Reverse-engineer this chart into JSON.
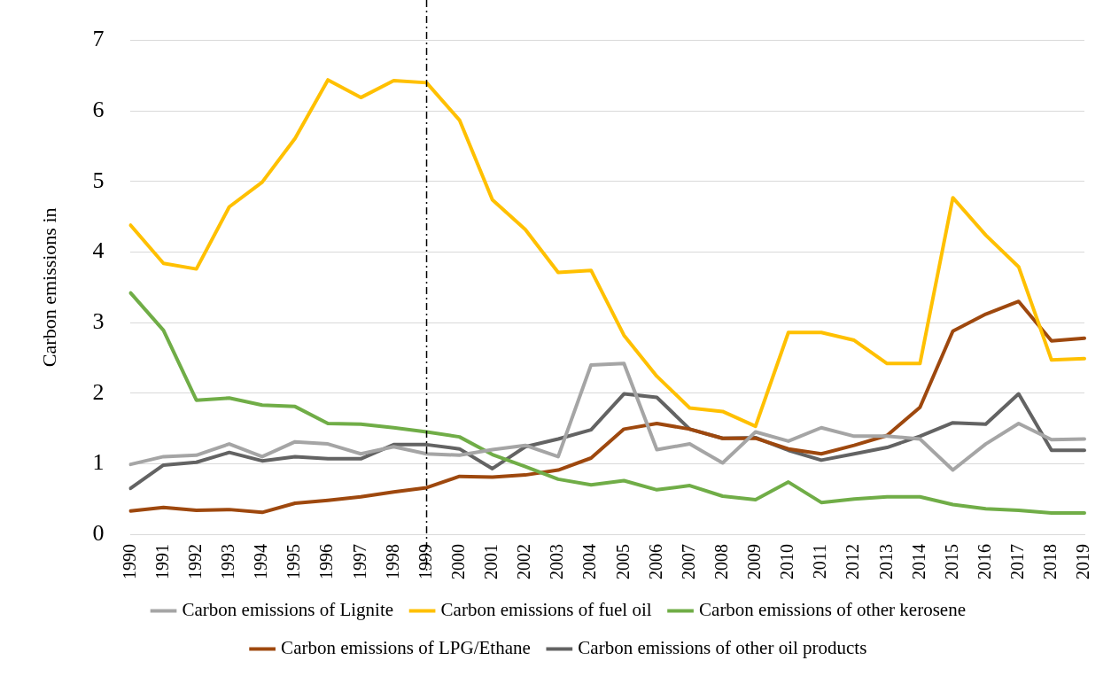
{
  "chart_data": {
    "type": "line",
    "ylabel": "Carbon emissions in",
    "categories": [
      "1990",
      "1991",
      "1992",
      "1993",
      "1994",
      "1995",
      "1996",
      "1997",
      "1998",
      "1999",
      "2000",
      "2001",
      "2002",
      "2003",
      "2004",
      "2005",
      "2006",
      "2007",
      "2008",
      "2009",
      "2010",
      "2011",
      "2012",
      "2013",
      "2014",
      "2015",
      "2016",
      "2017",
      "2018",
      "2019"
    ],
    "series": [
      {
        "name": "Carbon emissions of Lignite",
        "color": "#a5a5a5",
        "values": [
          0.99,
          1.1,
          1.12,
          1.28,
          1.1,
          1.31,
          1.28,
          1.14,
          1.24,
          1.14,
          1.12,
          1.2,
          1.26,
          1.1,
          2.4,
          2.42,
          1.2,
          1.28,
          1.01,
          1.45,
          1.32,
          1.51,
          1.39,
          1.39,
          1.35,
          0.91,
          1.28,
          1.57,
          1.34,
          1.35
        ]
      },
      {
        "name": "Carbon emissions of fuel oil",
        "color": "#ffc000",
        "values": [
          4.38,
          3.84,
          3.76,
          4.64,
          4.99,
          5.61,
          6.44,
          6.19,
          6.43,
          6.4,
          5.87,
          4.74,
          4.32,
          3.71,
          3.74,
          2.82,
          2.24,
          1.79,
          1.74,
          1.53,
          2.86,
          2.86,
          2.75,
          2.42,
          2.42,
          4.77,
          4.24,
          3.79,
          2.47,
          2.49
        ]
      },
      {
        "name": "Carbon emissions of other kerosene",
        "color": "#70ad47",
        "values": [
          3.42,
          2.89,
          1.9,
          1.93,
          1.83,
          1.81,
          1.57,
          1.56,
          1.51,
          1.45,
          1.38,
          1.13,
          0.96,
          0.78,
          0.7,
          0.76,
          0.63,
          0.69,
          0.54,
          0.49,
          0.74,
          0.45,
          0.5,
          0.53,
          0.53,
          0.42,
          0.36,
          0.34,
          0.3,
          0.3
        ]
      },
      {
        "name": "Carbon emissions of LPG/Ethane",
        "color": "#9e480e",
        "values": [
          0.33,
          0.38,
          0.34,
          0.35,
          0.31,
          0.44,
          0.48,
          0.53,
          0.6,
          0.66,
          0.82,
          0.81,
          0.84,
          0.91,
          1.08,
          1.49,
          1.57,
          1.49,
          1.36,
          1.36,
          1.21,
          1.14,
          1.26,
          1.4,
          1.8,
          2.88,
          3.12,
          3.3,
          2.74,
          2.78
        ]
      },
      {
        "name": "Carbon emissions of other oil products",
        "color": "#636363",
        "values": [
          0.65,
          0.98,
          1.02,
          1.16,
          1.04,
          1.1,
          1.07,
          1.07,
          1.27,
          1.27,
          1.21,
          0.93,
          1.24,
          1.35,
          1.48,
          1.99,
          1.94,
          1.49,
          1.36,
          1.37,
          1.19,
          1.05,
          1.14,
          1.23,
          1.39,
          1.58,
          1.56,
          1.99,
          1.19,
          1.19
        ]
      }
    ],
    "ylim": [
      0,
      7
    ],
    "yticks": [
      0,
      1,
      2,
      3,
      4,
      5,
      6,
      7
    ],
    "grid": "y",
    "legend": "bottom",
    "marker": "none",
    "line_style": "solid",
    "ref_lines": [
      {
        "axis": "x",
        "value": "1999",
        "color": "#000000",
        "line_style": "dashed"
      }
    ]
  }
}
